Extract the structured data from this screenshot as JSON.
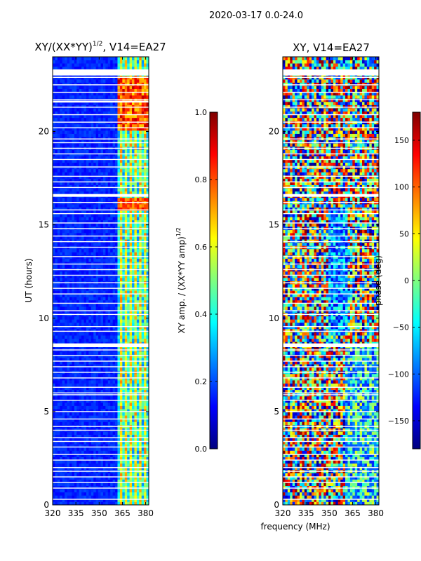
{
  "suptitle": "2020-03-17 0.0-24.0",
  "xlabel": "frequency (MHz)",
  "colors": {
    "background": "#ffffff",
    "colormap": [
      "#00007f",
      "#0000ff",
      "#007fff",
      "#00ffff",
      "#7fff7f",
      "#ffff00",
      "#ff7f00",
      "#ff0000",
      "#7f0000"
    ]
  },
  "chart_data": [
    {
      "type": "heatmap",
      "title_main": "XY/(XX*YY)",
      "title_sup": "1/2",
      "title_rest": ", V14=EA27",
      "xlabel": "",
      "ylabel": "UT (hours)",
      "xlim": [
        320,
        382
      ],
      "ylim": [
        0,
        24
      ],
      "xticks": [
        320,
        335,
        350,
        365,
        380
      ],
      "yticks": [
        0,
        5,
        10,
        15,
        20
      ],
      "grid": false,
      "colorbar": {
        "label_main": "XY amp. / (XX*YY amp)",
        "label_sup": "1/2",
        "range": [
          0.0,
          1.0
        ],
        "ticks": [
          "0.0",
          "0.2",
          "0.4",
          "0.6",
          "0.8",
          "1.0"
        ],
        "tick_values": [
          0.0,
          0.2,
          0.4,
          0.6,
          0.8,
          1.0
        ]
      },
      "gap_hours": [
        0.3,
        0.9,
        1.2,
        1.5,
        1.8,
        2.0,
        2.4,
        2.7,
        3.1,
        3.4,
        3.6,
        4.0,
        4.2,
        4.6,
        5.0,
        5.6,
        5.9,
        6.0,
        6.3,
        6.8,
        7.1,
        7.4,
        7.7,
        8.0,
        8.3,
        8.6,
        9.3,
        9.55,
        10.2,
        10.4,
        10.8,
        11.3,
        11.6,
        11.9,
        12.3,
        12.6,
        12.9,
        13.3,
        13.8,
        14.1,
        14.4,
        14.8,
        15.1,
        15.6,
        15.8,
        16.2,
        16.6,
        17.0,
        17.3,
        17.6,
        18.1,
        18.5,
        18.8,
        19.1,
        19.4,
        19.6,
        20.2,
        20.5,
        20.9,
        21.3,
        21.7,
        22.1,
        22.5,
        22.9,
        23.3
      ],
      "gap_bands": [
        [
          8.45,
          8.65
        ],
        [
          23.0,
          23.3
        ],
        [
          16.5,
          16.65
        ],
        [
          21.55,
          21.65
        ]
      ]
    },
    {
      "type": "heatmap",
      "title_main": "XY, V14=EA27",
      "title_sup": "",
      "title_rest": "",
      "xlabel": "frequency (MHz)",
      "ylabel": "",
      "xlim": [
        320,
        382
      ],
      "ylim": [
        0,
        24
      ],
      "xticks": [
        320,
        335,
        350,
        365,
        380
      ],
      "yticks": [
        0,
        5,
        10,
        15,
        20
      ],
      "grid": false,
      "colorbar": {
        "label_main": "phase (deg)",
        "label_sup": "",
        "range": [
          -180,
          180
        ],
        "ticks": [
          "−150",
          "−100",
          "−50",
          "0",
          "50",
          "100",
          "150"
        ],
        "tick_values": [
          -150,
          -100,
          -50,
          0,
          50,
          100,
          150
        ]
      },
      "gap_hours": [
        0.3,
        0.9,
        1.2,
        1.5,
        1.8,
        2.0,
        2.4,
        2.7,
        3.1,
        3.4,
        3.6,
        4.0,
        4.2,
        4.6,
        5.0,
        5.6,
        5.9,
        6.0,
        6.3,
        6.8,
        7.1,
        7.4,
        7.7,
        8.0,
        8.3,
        8.6,
        9.3,
        9.55,
        10.2,
        10.4,
        10.8,
        11.3,
        11.6,
        11.9,
        12.3,
        12.6,
        12.9,
        13.3,
        13.8,
        14.1,
        14.4,
        14.8,
        15.1,
        15.6,
        15.8,
        16.2,
        16.6,
        17.0,
        17.3,
        17.6,
        18.1,
        18.5,
        18.8,
        19.1,
        19.4,
        19.6,
        20.2,
        20.5,
        20.9,
        21.3,
        21.7,
        22.1,
        22.5,
        22.9,
        23.3
      ],
      "gap_bands": [
        [
          8.45,
          8.65
        ],
        [
          23.0,
          23.3
        ],
        [
          16.5,
          16.65
        ]
      ]
    }
  ]
}
